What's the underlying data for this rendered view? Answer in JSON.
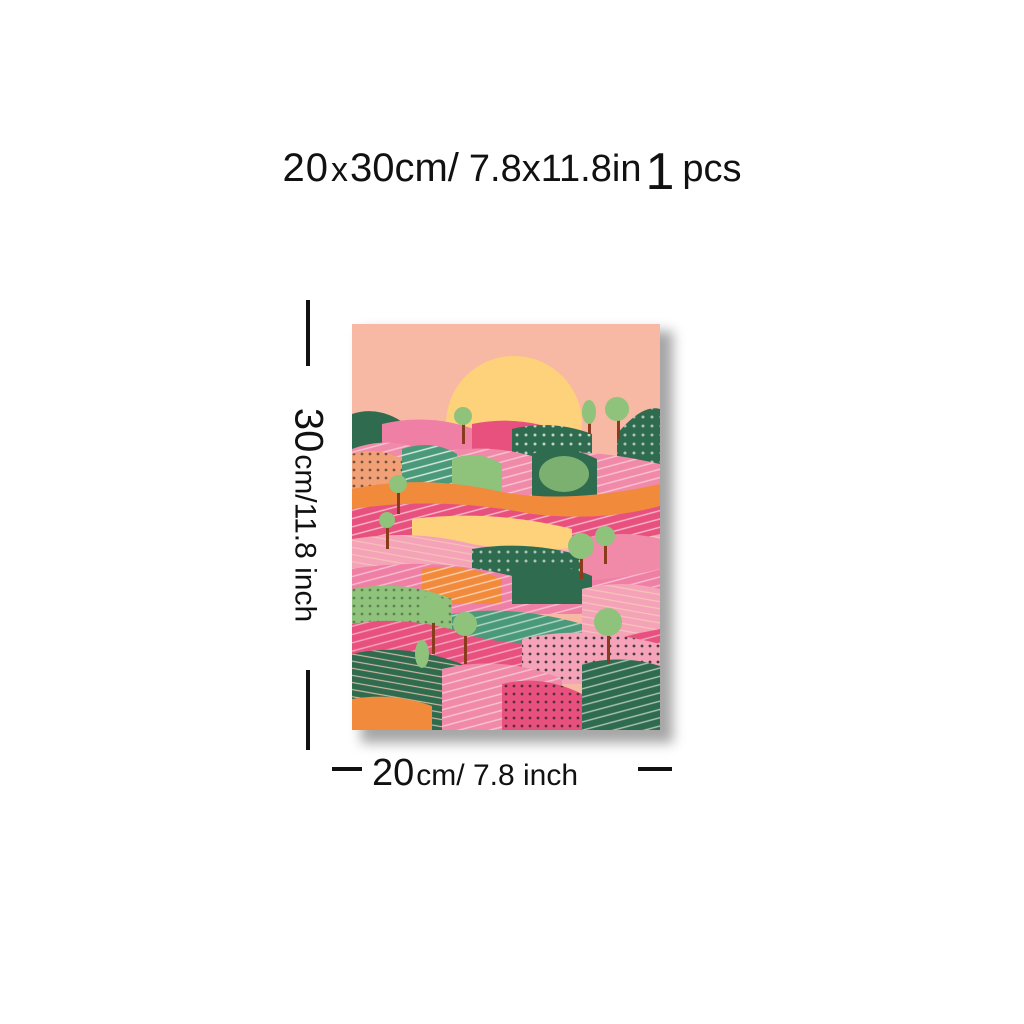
{
  "title": {
    "width_cm": "20",
    "times": "x",
    "height_cm": "30cm",
    "separator": "/",
    "size_in": "7.8x11.8in",
    "quantity": "1",
    "unit_pcs": "pcs"
  },
  "height_dimension": {
    "number": "30",
    "unit_text": "cm/11.8 inch"
  },
  "width_dimension": {
    "number": "20",
    "unit_text": "cm/ 7.8 inch"
  },
  "artwork": {
    "subject": "landscape-painting",
    "colors": {
      "sky": "#f7b9a3",
      "sun": "#fdd27a",
      "pink": "#ef7fa4",
      "hotpink": "#e8507e",
      "green": "#2f6b4e",
      "lightgreen": "#8fc27a",
      "orange": "#f28a3c",
      "cream": "#f9d9c7"
    }
  }
}
